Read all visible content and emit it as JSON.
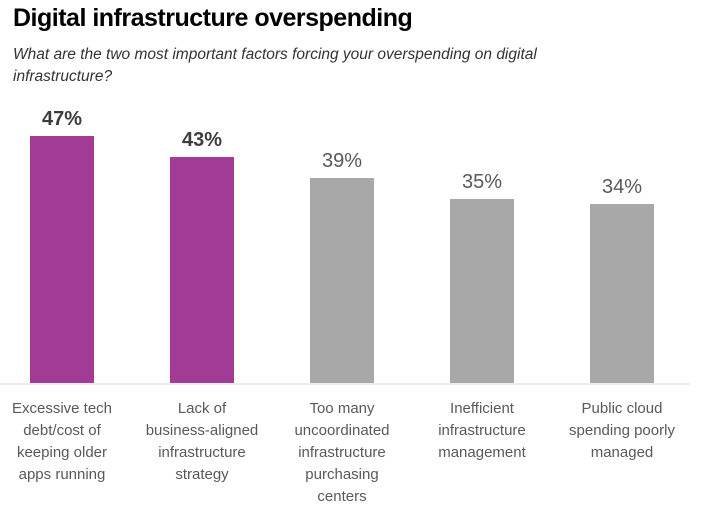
{
  "page": {
    "title": "Digital infrastructure overspending",
    "subtitle_lines": [
      "What are the two most important factors forcing your overspending on digital",
      "infrastructure?"
    ]
  },
  "colors": {
    "highlight_bar": "#a23b96",
    "default_bar": "#a8a8a8",
    "axis_line": "#ececec",
    "value_label_bold": "#3d3d3d",
    "value_label_regular": "#595959",
    "category_text": "#595959",
    "title_text": "#000000",
    "subtitle_text": "#333333"
  },
  "chart_data": {
    "type": "bar",
    "title": "Digital infrastructure overspending",
    "subtitle": "What are the two most important factors forcing your overspending on digital infrastructure?",
    "categories": [
      "Excessive tech debt/cost of keeping older apps running",
      "Lack of business-aligned infrastructure strategy",
      "Too many uncoordinated infrastructure purchasing centers",
      "Inefficient infrastructure management",
      "Public cloud spending poorly managed"
    ],
    "category_line_breaks": [
      [
        "Excessive tech",
        "debt/cost of",
        "keeping older",
        "apps running"
      ],
      [
        "Lack of",
        "business-aligned",
        "infrastructure",
        "strategy"
      ],
      [
        "Too many",
        "uncoordinated",
        "infrastructure",
        "purchasing",
        "centers"
      ],
      [
        "Inefficient",
        "infrastructure",
        "management"
      ],
      [
        "Public cloud",
        "spending poorly",
        "managed"
      ]
    ],
    "values": [
      47,
      43,
      39,
      35,
      34
    ],
    "value_labels": [
      "47%",
      "43%",
      "39%",
      "35%",
      "34%"
    ],
    "highlighted": [
      true,
      true,
      false,
      false,
      false
    ],
    "unit": "%",
    "xlabel": "",
    "ylabel": "",
    "ylim": [
      0,
      50
    ],
    "grid": false,
    "legend": "none",
    "value_axis_visible": false
  }
}
